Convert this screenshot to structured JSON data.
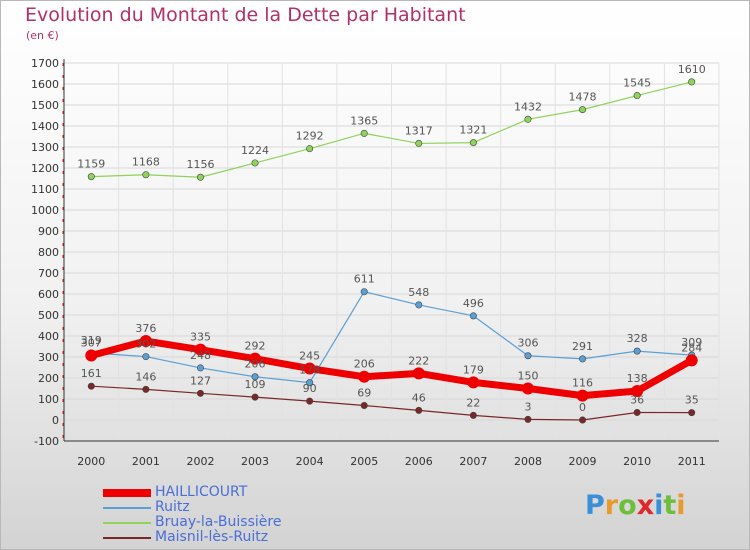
{
  "title": "Evolution du Montant de la Dette par Habitant",
  "subtitle": "(en €)",
  "logo_text": "Proxiti",
  "chart_data": {
    "type": "line",
    "x": [
      "2000",
      "2001",
      "2002",
      "2003",
      "2004",
      "2005",
      "2006",
      "2007",
      "2008",
      "2009",
      "2010",
      "2011"
    ],
    "ylim": [
      -100,
      1700
    ],
    "yticks": [
      -100,
      0,
      100,
      200,
      300,
      400,
      500,
      600,
      700,
      800,
      900,
      1000,
      1100,
      1200,
      1300,
      1400,
      1500,
      1600,
      1700
    ],
    "grid": true,
    "legend_position": "bottom-left",
    "series": [
      {
        "name": "HAILLICOURT",
        "color": "#ee0000",
        "values": [
          307,
          376,
          335,
          292,
          245,
          206,
          222,
          179,
          150,
          116,
          138,
          284
        ]
      },
      {
        "name": "Ruitz",
        "color": "#5b9fd4",
        "values": [
          319,
          302,
          248,
          206,
          178,
          611,
          548,
          496,
          306,
          291,
          328,
          309
        ]
      },
      {
        "name": "Bruay-la-Buissière",
        "color": "#8ed35a",
        "values": [
          1159,
          1168,
          1156,
          1224,
          1292,
          1365,
          1317,
          1321,
          1432,
          1478,
          1545,
          1610
        ]
      },
      {
        "name": "Maisnil-lès-Ruitz",
        "color": "#7a2727",
        "values": [
          161,
          146,
          127,
          109,
          90,
          69,
          46,
          22,
          3,
          0,
          36,
          35
        ]
      }
    ]
  }
}
